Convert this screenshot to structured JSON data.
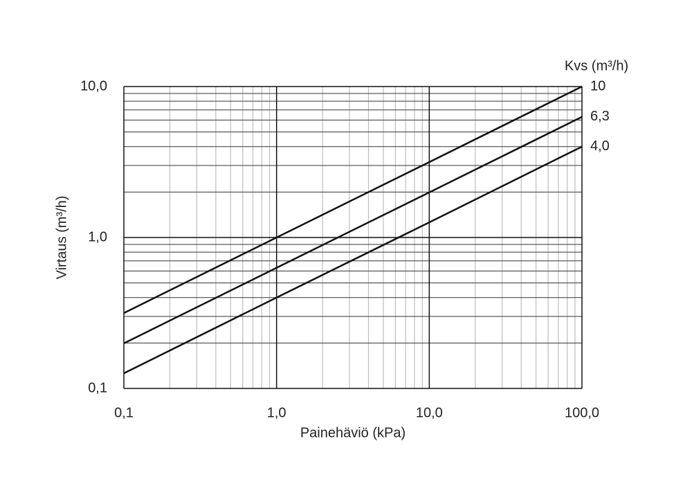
{
  "chart_data": {
    "type": "line",
    "x_label": "Painehäviö (kPa)",
    "y_label": "Virtaus (m³/h)",
    "legend_title": "Kvs (m³/h)",
    "log_x": true,
    "log_y": true,
    "grid": true,
    "color": "#111111",
    "x": [
      0.1,
      1,
      10,
      100
    ],
    "series": [
      {
        "name": "10",
        "color": "#111111",
        "values": [
          0.316,
          1.0,
          3.16,
          10.0
        ]
      },
      {
        "name": "6,3",
        "color": "#111111",
        "values": [
          0.199,
          0.63,
          1.99,
          6.3
        ]
      },
      {
        "name": "4,0",
        "color": "#111111",
        "values": [
          0.126,
          0.4,
          1.26,
          4.0
        ]
      }
    ],
    "xlim": [
      0.1,
      100
    ],
    "ylim": [
      0.1,
      10
    ],
    "xticks": [
      {
        "value": 0.1,
        "label": "0,1"
      },
      {
        "value": 1,
        "label": "1,0"
      },
      {
        "value": 10,
        "label": "10,0"
      },
      {
        "value": 100,
        "label": "100,0"
      }
    ],
    "yticks": [
      {
        "value": 0.1,
        "label": "0,1"
      },
      {
        "value": 1,
        "label": "1,0"
      },
      {
        "value": 10,
        "label": "10,0"
      }
    ],
    "xminorticks": [
      0.2,
      0.3,
      0.4,
      0.5,
      0.6,
      0.7,
      0.8,
      0.9,
      2,
      3,
      4,
      5,
      6,
      7,
      8,
      9,
      20,
      30,
      40,
      50,
      60,
      70,
      80,
      90
    ],
    "yminorticks": [
      0.2,
      0.3,
      0.4,
      0.5,
      0.6,
      0.7,
      0.8,
      0.9,
      2,
      3,
      4,
      5,
      6,
      7,
      8,
      9
    ]
  }
}
